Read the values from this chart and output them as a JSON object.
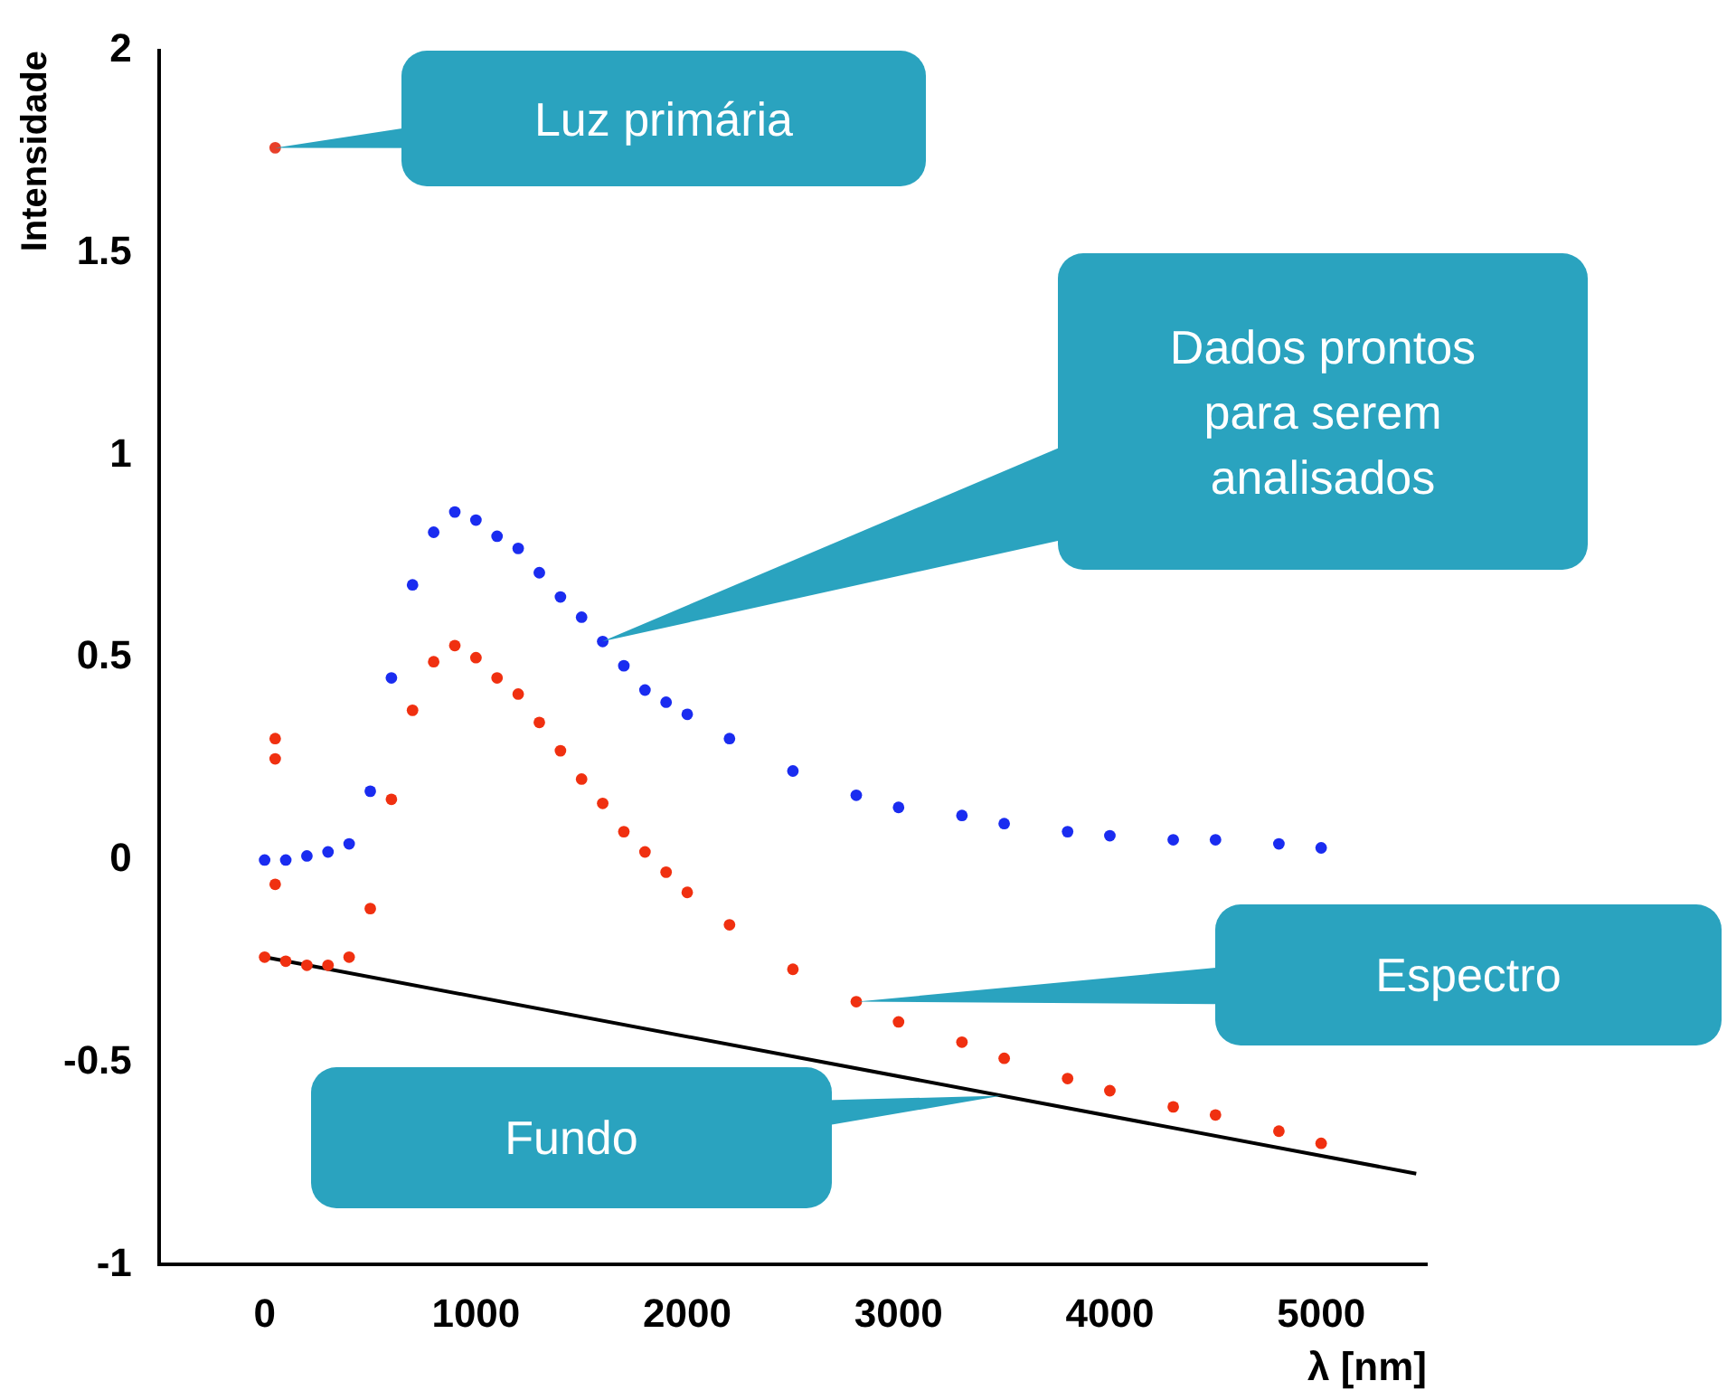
{
  "chart_data": {
    "type": "scatter",
    "xlabel": "λ [nm]",
    "ylabel": "Intensidade",
    "xlim": [
      -500,
      5500
    ],
    "ylim": [
      -1,
      2
    ],
    "xticks": [
      0,
      1000,
      2000,
      3000,
      4000,
      5000
    ],
    "yticks": [
      -1,
      -0.5,
      0,
      0.5,
      1,
      1.5,
      2
    ],
    "grid": false,
    "legend": false,
    "marker": "circle",
    "series": [
      {
        "name": "Luz primária",
        "type": "scatter",
        "color": "#e8402a",
        "x": [
          50
        ],
        "values": [
          1.76
        ]
      },
      {
        "name": "Dados prontos para serem analisados",
        "type": "scatter",
        "color": "#1a2cf0",
        "x": [
          0,
          100,
          200,
          300,
          400,
          500,
          600,
          700,
          800,
          900,
          1000,
          1100,
          1200,
          1300,
          1400,
          1500,
          1600,
          1700,
          1800,
          1900,
          2000,
          2200,
          2500,
          2800,
          3000,
          3300,
          3500,
          3800,
          4000,
          4300,
          4500,
          4800,
          5000
        ],
        "values": [
          0,
          0,
          0.01,
          0.02,
          0.04,
          0.17,
          0.45,
          0.68,
          0.81,
          0.86,
          0.84,
          0.8,
          0.77,
          0.71,
          0.65,
          0.6,
          0.54,
          0.48,
          0.42,
          0.39,
          0.36,
          0.3,
          0.22,
          0.16,
          0.13,
          0.11,
          0.09,
          0.07,
          0.06,
          0.05,
          0.05,
          0.04,
          0.03
        ]
      },
      {
        "name": "Espectro",
        "type": "scatter",
        "color": "#f03010",
        "x": [
          50,
          50,
          50,
          0,
          100,
          200,
          300,
          400,
          500,
          600,
          700,
          800,
          900,
          1000,
          1100,
          1200,
          1300,
          1400,
          1500,
          1600,
          1700,
          1800,
          1900,
          2000,
          2200,
          2500,
          2800,
          3000,
          3300,
          3500,
          3800,
          4000,
          4300,
          4500,
          4800,
          5000
        ],
        "values": [
          0.3,
          0.25,
          -0.06,
          -0.24,
          -0.25,
          -0.26,
          -0.26,
          -0.24,
          -0.12,
          0.15,
          0.37,
          0.49,
          0.53,
          0.5,
          0.45,
          0.41,
          0.34,
          0.27,
          0.2,
          0.14,
          0.07,
          0.02,
          -0.03,
          -0.08,
          -0.16,
          -0.27,
          -0.35,
          -0.4,
          -0.45,
          -0.49,
          -0.54,
          -0.57,
          -0.61,
          -0.63,
          -0.67,
          -0.7
        ]
      },
      {
        "name": "Fundo",
        "type": "line",
        "marker": "none",
        "color": "#000000",
        "x": [
          0,
          5450
        ],
        "values": [
          -0.24,
          -0.775
        ]
      }
    ]
  }
}
